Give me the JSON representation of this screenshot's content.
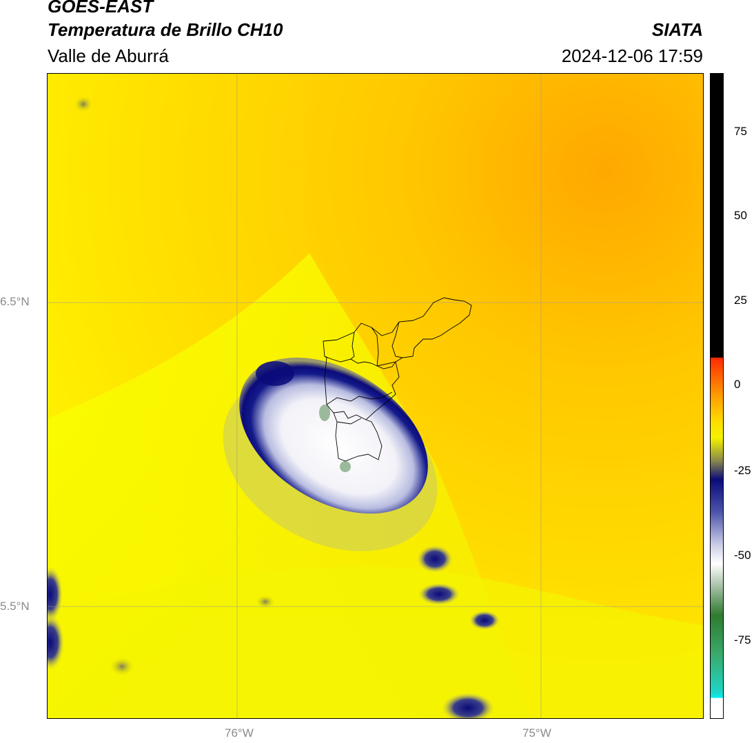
{
  "header": {
    "satellite": "GOES-EAST",
    "product": "Temperatura de Brillo CH10",
    "region": "Valle de Aburrá",
    "organization": "SIATA",
    "timestamp": "2024-12-06 17:59"
  },
  "axes": {
    "lat_ticks": [
      "6.5°N",
      "5.5°N"
    ],
    "lon_ticks": [
      "76°W",
      "75°W"
    ]
  },
  "colorbar": {
    "ticks": [
      "75",
      "50",
      "25",
      "0",
      "-25",
      "-50",
      "-75"
    ],
    "colors": [
      "#000000",
      "#ff2a00",
      "#ff9d00",
      "#ffdd00",
      "#f4f200",
      "#8a8a4a",
      "#0b0b7a",
      "#4b54a8",
      "#c8cbe6",
      "#ffffff",
      "#9bb99b",
      "#2f7b2f",
      "#3aa86a",
      "#1ed6c8",
      "#00f0f0",
      "#ffffff"
    ]
  },
  "map": {
    "background": "#ffe400",
    "warm": "#ffc400",
    "cold_core": "#ffffff",
    "cold_edge": "#0b0b7a"
  }
}
